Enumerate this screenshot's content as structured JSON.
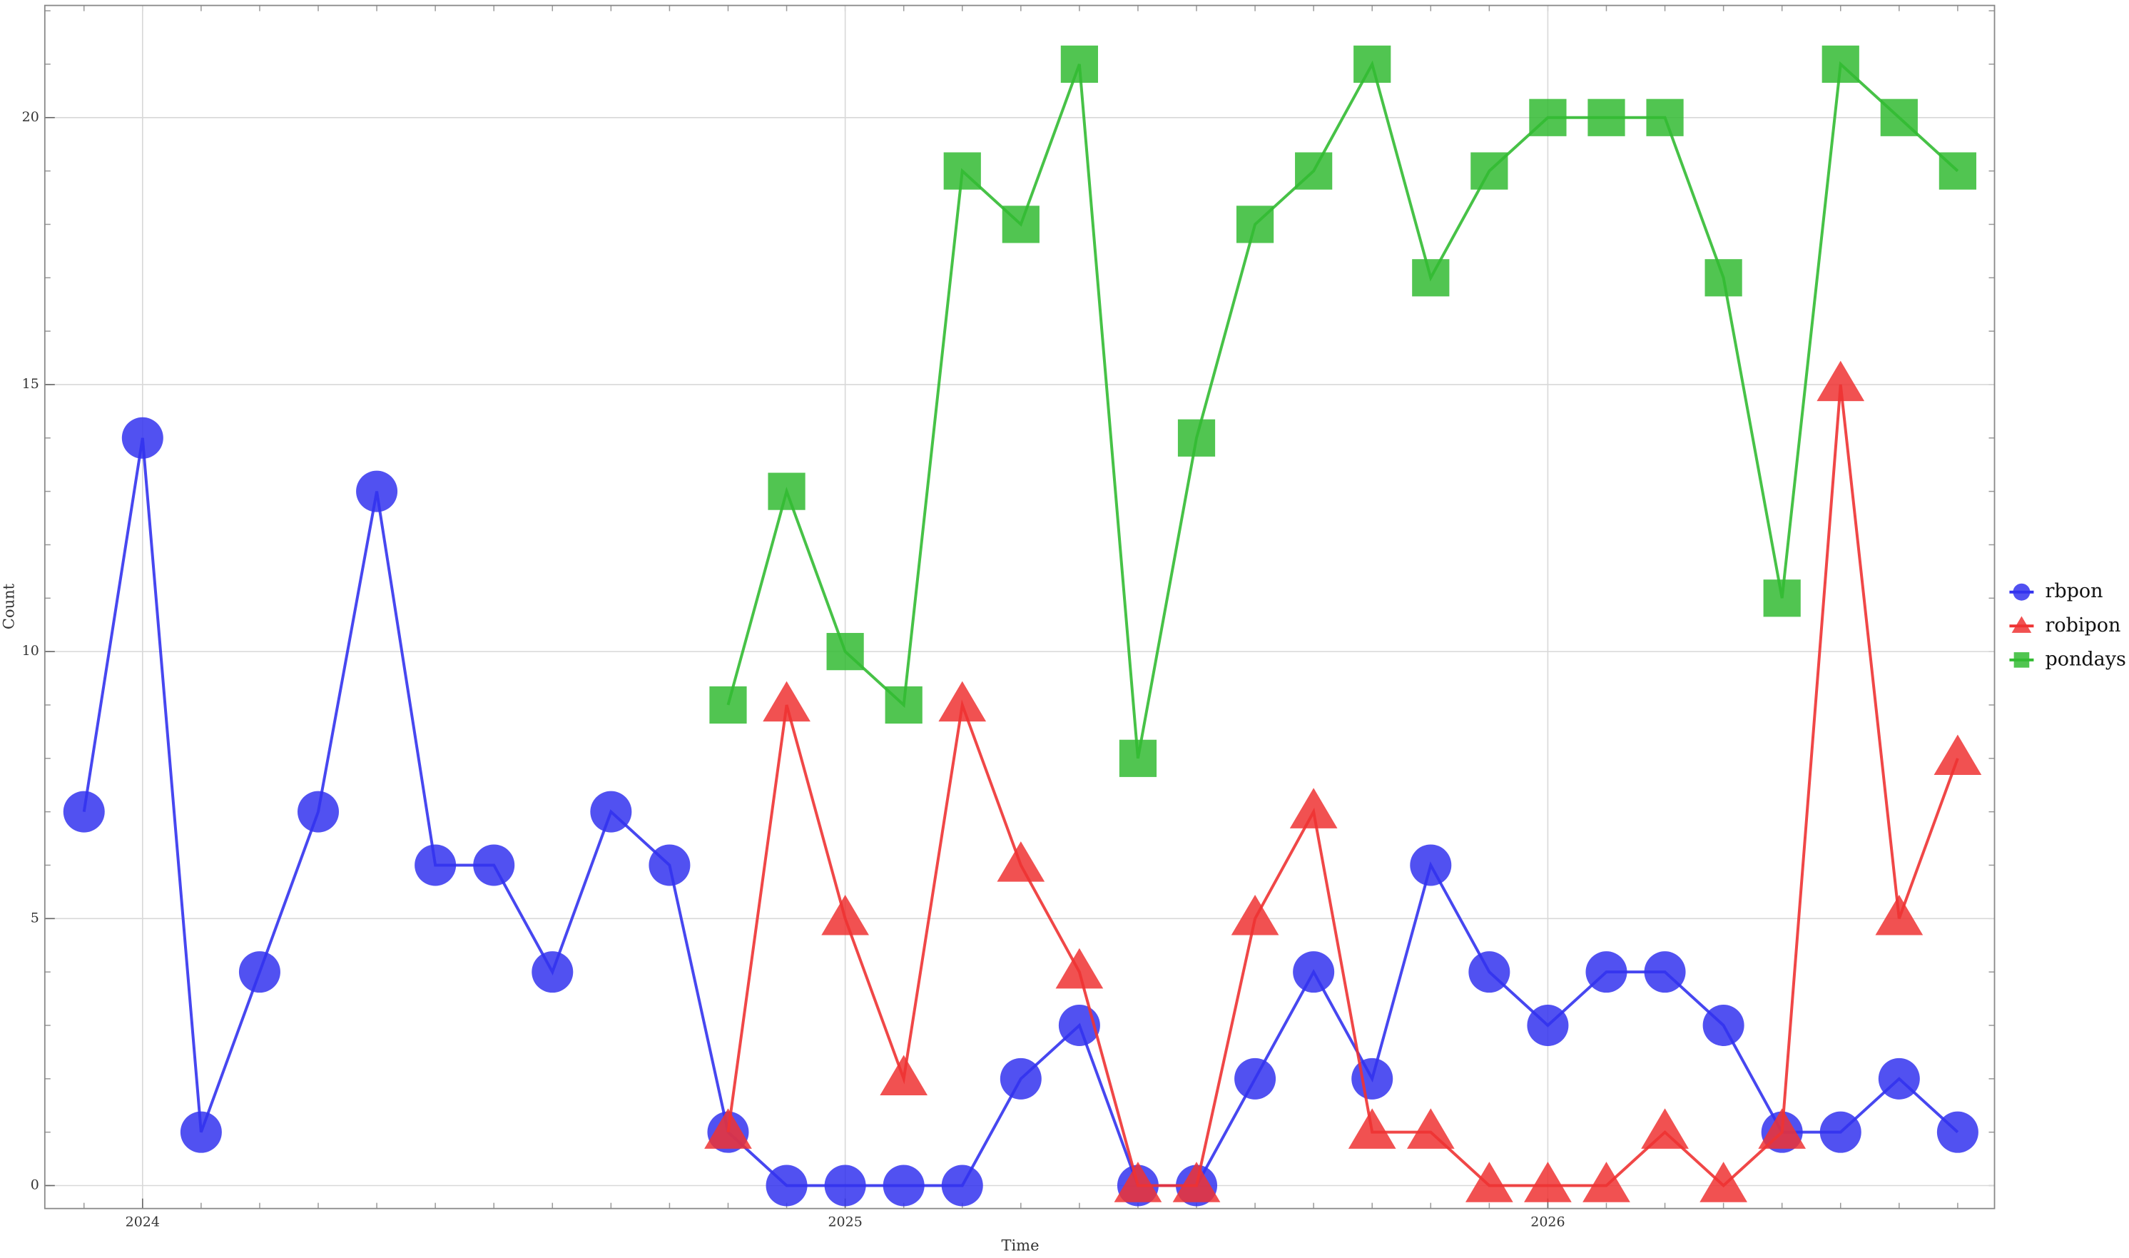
{
  "chart_data": {
    "type": "line",
    "x_label": "Time",
    "y_label": "Count",
    "categories": [
      null,
      "2024",
      null,
      null,
      null,
      null,
      null,
      null,
      null,
      null,
      null,
      null,
      null,
      "2025",
      null,
      null,
      null,
      null,
      null,
      null,
      null,
      null,
      null,
      null,
      null,
      "2026",
      null,
      null,
      null,
      null,
      null,
      null,
      null
    ],
    "series": [
      {
        "name": "rbpon",
        "color": "#3333ee",
        "marker": "circle",
        "values": [
          7,
          14,
          1,
          4,
          7,
          13,
          6,
          6,
          4,
          7,
          6,
          1,
          0,
          0,
          0,
          0,
          2,
          3,
          0,
          0,
          2,
          4,
          2,
          6,
          4,
          3,
          4,
          4,
          3,
          1,
          1,
          2,
          1
        ]
      },
      {
        "name": "robipon",
        "color": "#ee3333",
        "marker": "triangle",
        "values": [
          null,
          null,
          null,
          null,
          null,
          null,
          null,
          null,
          null,
          null,
          null,
          1,
          9,
          5,
          2,
          9,
          6,
          4,
          0,
          0,
          5,
          7,
          1,
          1,
          0,
          0,
          0,
          1,
          0,
          1,
          15,
          5,
          8
        ]
      },
      {
        "name": "pondays",
        "color": "#33bb33",
        "marker": "square",
        "values": [
          null,
          null,
          null,
          null,
          null,
          null,
          null,
          null,
          null,
          null,
          null,
          9,
          13,
          10,
          9,
          19,
          18,
          21,
          8,
          14,
          18,
          19,
          21,
          17,
          19,
          20,
          20,
          20,
          17,
          11,
          21,
          20,
          19
        ]
      }
    ],
    "ylim": [
      -0.43,
      22.1
    ],
    "yticks": [
      0,
      5,
      10,
      15,
      20
    ],
    "grid": true,
    "legend": "right"
  }
}
